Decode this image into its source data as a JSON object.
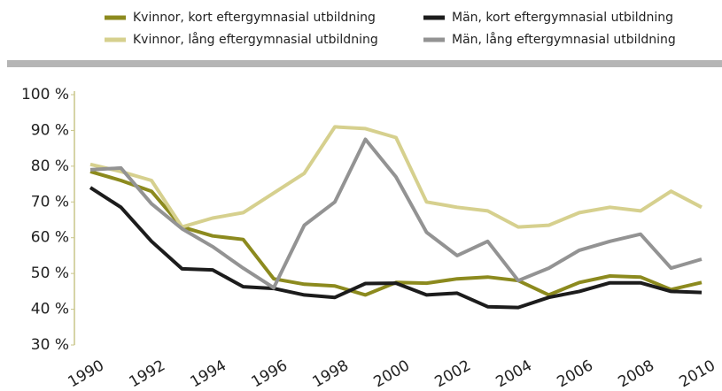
{
  "chart_data": {
    "type": "line",
    "x": [
      1990,
      1991,
      1992,
      1993,
      1994,
      1995,
      1996,
      1997,
      1998,
      1999,
      2000,
      2001,
      2002,
      2003,
      2004,
      2005,
      2006,
      2007,
      2008,
      2009,
      2010
    ],
    "series": [
      {
        "name": "Kvinnor, kort eftergymnasial utbildning",
        "color": "#8c8a1e",
        "values": [
          78.5,
          76,
          73,
          63,
          60.5,
          59.5,
          48.5,
          47,
          46.5,
          44,
          47.5,
          47.3,
          48.5,
          49,
          48,
          44,
          47.5,
          49.3,
          49,
          45.5,
          47.5
        ]
      },
      {
        "name": "Kvinnor, lång eftergymnasial utbildning",
        "color": "#d6d08e",
        "values": [
          80.5,
          78.5,
          76,
          63,
          65.5,
          67,
          72.5,
          78,
          91,
          90.5,
          88,
          70,
          68.5,
          67.5,
          63,
          63.5,
          67,
          68.5,
          67.5,
          73,
          68.5
        ]
      },
      {
        "name": "Män, kort eftergymnasial utbildning",
        "color": "#1c1c1c",
        "values": [
          74,
          68.5,
          59,
          51.3,
          51,
          46.3,
          45.8,
          44,
          43.3,
          47.2,
          47.3,
          44,
          44.5,
          40.7,
          40.5,
          43.3,
          45,
          47.4,
          47.4,
          45,
          44.7
        ]
      },
      {
        "name": "Män, lång eftergymnasial utbildning",
        "color": "#939393",
        "values": [
          79,
          79.5,
          69.5,
          62.5,
          57.5,
          51.5,
          46,
          63.5,
          70,
          87.5,
          77,
          61.5,
          55,
          59,
          48,
          51.5,
          56.5,
          59,
          61,
          51.5,
          54
        ]
      }
    ],
    "xlim": [
      1990,
      2010
    ],
    "xticks": [
      1990,
      1992,
      1994,
      1996,
      1998,
      2000,
      2002,
      2004,
      2006,
      2008,
      2010
    ],
    "ylim": [
      30,
      100
    ],
    "yticks": [
      {
        "value": 30,
        "label": "30 %"
      },
      {
        "value": 40,
        "label": "40 %"
      },
      {
        "value": 50,
        "label": "50 %"
      },
      {
        "value": 60,
        "label": "60 %"
      },
      {
        "value": 70,
        "label": "70 %"
      },
      {
        "value": 80,
        "label": "80 %"
      },
      {
        "value": 90,
        "label": "90 %"
      },
      {
        "value": 100,
        "label": "100 %"
      }
    ],
    "grid": false
  }
}
